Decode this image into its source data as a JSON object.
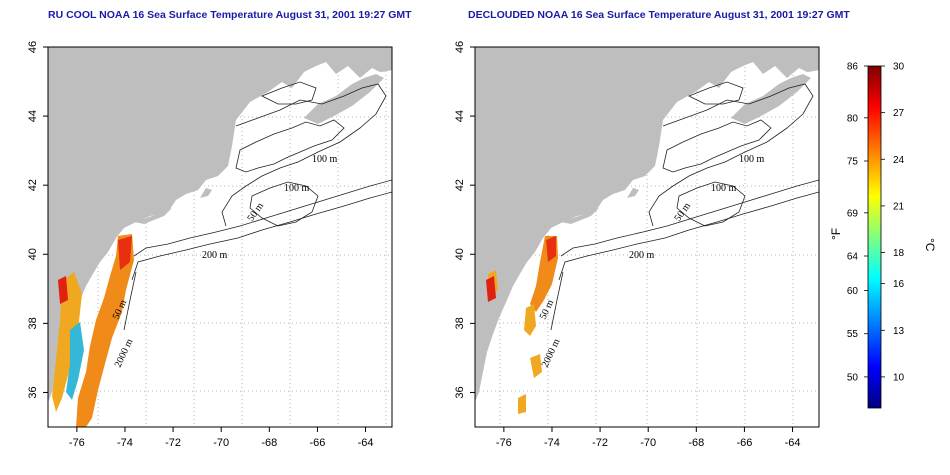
{
  "left_panel": {
    "title": "RU COOL NOAA 16 Sea Surface Temperature August 31, 2001 19:27 GMT",
    "contour_labels": [
      "100 m",
      "100 m",
      "50 m",
      "200 m",
      "50 m",
      "2000 m"
    ]
  },
  "right_panel": {
    "title": "DECLOUDED NOAA 16 Sea Surface Temperature August 31, 2001 19:27 GMT",
    "contour_labels": [
      "100 m",
      "100 m",
      "50 m",
      "200 m",
      "50 m",
      "2000 m"
    ]
  },
  "axes": {
    "lon_ticks": [
      "-76",
      "-74",
      "-72",
      "-70",
      "-68",
      "-66",
      "-64"
    ],
    "lat_ticks": [
      "36",
      "38",
      "40",
      "42",
      "44",
      "46"
    ],
    "lon_range": [
      -77.2,
      -62.9
    ],
    "lat_range": [
      35.0,
      46.0
    ],
    "grid": "dotted"
  },
  "colorbar": {
    "fahrenheit_ticks": [
      "86",
      "80",
      "75",
      "69",
      "64",
      "60",
      "55",
      "50"
    ],
    "celsius_ticks": [
      "30",
      "27",
      "24",
      "21",
      "18",
      "16",
      "13",
      "10"
    ],
    "fahrenheit_unit": "°F",
    "celsius_unit": "°C",
    "colors": [
      "#00007f",
      "#0000ff",
      "#0080ff",
      "#00ffff",
      "#80ff80",
      "#ffff00",
      "#ff8000",
      "#ff0000",
      "#7f0000"
    ]
  },
  "colors": {
    "land": "#bebebe",
    "title": "#1a1aa8"
  }
}
